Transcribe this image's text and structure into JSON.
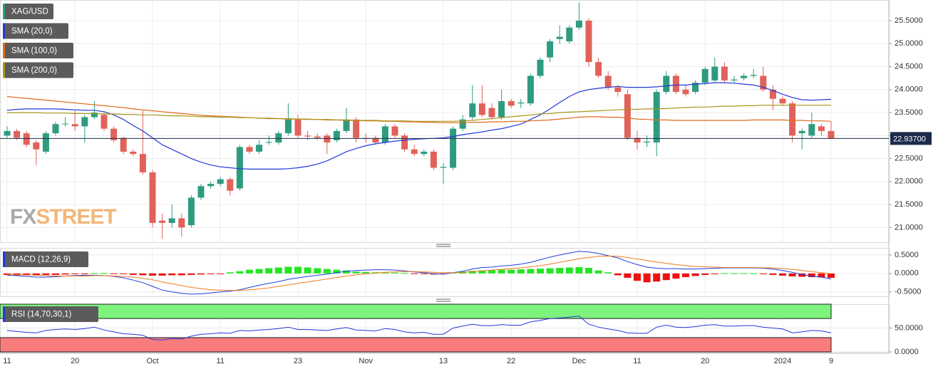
{
  "chart_data": [
    {
      "type": "candlestick",
      "title": "XAG/USD",
      "up_color": "#2e9b80",
      "down_color": "#e0625a",
      "categories": [
        "11",
        null,
        null,
        null,
        null,
        null,
        null,
        "20",
        null,
        null,
        null,
        null,
        null,
        null,
        null,
        "Oct",
        null,
        null,
        null,
        null,
        null,
        null,
        "11",
        null,
        null,
        null,
        null,
        null,
        null,
        null,
        "23",
        null,
        null,
        null,
        null,
        null,
        null,
        "Nov",
        null,
        null,
        null,
        null,
        null,
        null,
        null,
        "13",
        null,
        null,
        null,
        null,
        null,
        null,
        "22",
        null,
        null,
        null,
        null,
        null,
        null,
        "Dec",
        null,
        null,
        null,
        null,
        null,
        "11",
        null,
        null,
        null,
        null,
        null,
        null,
        "20",
        null,
        null,
        null,
        null,
        null,
        null,
        null,
        "2024",
        null,
        null,
        null,
        null,
        "9"
      ],
      "open": [
        23.0,
        23.1,
        23.05,
        22.85,
        22.65,
        23.05,
        23.25,
        23.25,
        23.2,
        23.4,
        23.45,
        23.15,
        22.95,
        22.65,
        22.6,
        22.2,
        21.15,
        21.1,
        21.2,
        21.05,
        21.65,
        21.9,
        21.95,
        22.05,
        21.85,
        22.75,
        22.65,
        22.85,
        22.85,
        23.05,
        23.35,
        23.0,
        22.98,
        23.0,
        22.9,
        23.1,
        23.35,
        22.95,
        22.95,
        22.85,
        23.2,
        23.0,
        22.7,
        22.6,
        22.65,
        22.3,
        22.3,
        23.15,
        23.4,
        23.7,
        23.6,
        23.4,
        23.75,
        23.7,
        23.7,
        24.3,
        24.7,
        25.1,
        25.05,
        25.35,
        25.5,
        24.6,
        24.3,
        24.05,
        23.9,
        22.95,
        22.85,
        22.85,
        23.95,
        24.3,
        24.0,
        23.95,
        24.15,
        24.2,
        24.5,
        24.2,
        24.25,
        24.3,
        24.3,
        24.0,
        23.8,
        23.7,
        23.05,
        23.0,
        23.2,
        23.1
      ],
      "high": [
        23.2,
        23.15,
        23.1,
        22.9,
        23.1,
        23.3,
        23.4,
        23.55,
        23.45,
        23.75,
        23.5,
        23.2,
        22.98,
        22.7,
        23.55,
        22.25,
        21.3,
        21.5,
        21.3,
        21.7,
        21.95,
        22.0,
        22.1,
        22.1,
        22.8,
        22.8,
        22.9,
        23.0,
        23.1,
        23.7,
        23.45,
        23.1,
        23.05,
        23.05,
        23.15,
        23.6,
        23.4,
        23.05,
        23.0,
        23.25,
        23.25,
        23.05,
        22.8,
        22.7,
        22.7,
        22.4,
        23.2,
        23.45,
        24.1,
        24.1,
        23.7,
        24.0,
        23.8,
        23.8,
        24.35,
        24.7,
        25.1,
        25.4,
        25.4,
        25.9,
        25.55,
        24.7,
        24.4,
        24.1,
        24.0,
        23.1,
        23.0,
        24.0,
        24.4,
        24.35,
        24.1,
        24.2,
        24.5,
        24.7,
        24.6,
        24.3,
        24.35,
        24.45,
        24.5,
        24.1,
        23.85,
        23.75,
        23.15,
        23.5,
        23.25,
        23.3
      ],
      "low": [
        22.95,
        22.9,
        22.75,
        22.35,
        22.6,
        23.0,
        23.2,
        23.1,
        22.85,
        23.35,
        23.1,
        22.85,
        22.6,
        22.55,
        22.15,
        21.0,
        20.75,
        21.0,
        20.8,
        21.0,
        21.6,
        21.85,
        21.9,
        21.7,
        21.8,
        22.6,
        22.6,
        22.8,
        22.8,
        23.0,
        22.95,
        22.9,
        22.9,
        22.6,
        22.85,
        23.05,
        22.85,
        22.85,
        22.8,
        22.8,
        22.95,
        22.65,
        22.55,
        22.55,
        22.25,
        21.95,
        22.25,
        23.1,
        23.35,
        23.4,
        23.35,
        23.35,
        23.6,
        23.6,
        23.65,
        24.25,
        24.6,
        25.0,
        25.0,
        25.3,
        24.5,
        24.25,
        24.0,
        23.85,
        22.9,
        22.7,
        22.75,
        22.55,
        23.9,
        23.9,
        23.85,
        23.9,
        24.1,
        24.15,
        24.15,
        24.15,
        24.2,
        24.25,
        23.95,
        23.55,
        23.65,
        22.85,
        22.7,
        22.95,
        23.0,
        22.92
      ],
      "close": [
        23.1,
        22.95,
        22.8,
        22.7,
        23.05,
        23.25,
        23.26,
        23.2,
        23.4,
        23.5,
        23.15,
        22.9,
        22.65,
        22.6,
        22.2,
        21.1,
        21.1,
        21.2,
        21.0,
        21.65,
        21.9,
        21.95,
        22.05,
        21.8,
        22.75,
        22.65,
        22.8,
        22.86,
        23.05,
        23.35,
        23.0,
        22.98,
        22.95,
        22.85,
        23.1,
        23.35,
        22.95,
        22.93,
        22.85,
        23.2,
        23.0,
        22.7,
        22.6,
        22.65,
        22.3,
        22.32,
        23.15,
        23.35,
        23.7,
        23.45,
        23.4,
        23.75,
        23.65,
        23.72,
        24.3,
        24.65,
        25.05,
        25.15,
        25.35,
        25.5,
        24.6,
        24.3,
        24.05,
        23.95,
        22.95,
        22.85,
        22.87,
        23.95,
        24.3,
        23.95,
        23.9,
        24.15,
        24.45,
        24.5,
        24.2,
        24.22,
        24.3,
        24.32,
        24.0,
        23.8,
        23.7,
        23.0,
        23.1,
        23.25,
        23.1,
        22.94
      ],
      "series": [
        {
          "name": "SMA (20,0)",
          "color": "#2438d8",
          "values": [
            23.55,
            23.57,
            23.58,
            23.58,
            23.58,
            23.58,
            23.57,
            23.56,
            23.55,
            23.55,
            23.52,
            23.45,
            23.35,
            23.22,
            23.1,
            22.95,
            22.8,
            22.7,
            22.6,
            22.5,
            22.42,
            22.36,
            22.32,
            22.3,
            22.28,
            22.27,
            22.27,
            22.27,
            22.27,
            22.28,
            22.3,
            22.33,
            22.38,
            22.45,
            22.55,
            22.65,
            22.72,
            22.78,
            22.82,
            22.85,
            22.88,
            22.9,
            22.92,
            22.93,
            22.94,
            22.95,
            22.98,
            23.02,
            23.05,
            23.08,
            23.12,
            23.15,
            23.2,
            23.25,
            23.35,
            23.45,
            23.58,
            23.72,
            23.85,
            23.95,
            24.0,
            24.03,
            24.05,
            24.07,
            24.05,
            24.05,
            24.05,
            24.06,
            24.08,
            24.1,
            24.1,
            24.12,
            24.13,
            24.15,
            24.15,
            24.14,
            24.12,
            24.1,
            24.05,
            23.98,
            23.9,
            23.83,
            23.78,
            23.77,
            23.78,
            23.79
          ]
        },
        {
          "name": "SMA (100,0)",
          "color": "#e06a1a",
          "values": [
            23.85,
            23.83,
            23.81,
            23.79,
            23.77,
            23.75,
            23.73,
            23.71,
            23.69,
            23.67,
            23.65,
            23.63,
            23.61,
            23.58,
            23.56,
            23.54,
            23.52,
            23.5,
            23.48,
            23.46,
            23.44,
            23.43,
            23.42,
            23.41,
            23.4,
            23.39,
            23.38,
            23.37,
            23.37,
            23.36,
            23.36,
            23.35,
            23.35,
            23.34,
            23.34,
            23.33,
            23.33,
            23.32,
            23.32,
            23.31,
            23.31,
            23.3,
            23.3,
            23.29,
            23.29,
            23.28,
            23.28,
            23.28,
            23.29,
            23.29,
            23.3,
            23.3,
            23.31,
            23.31,
            23.32,
            23.33,
            23.34,
            23.36,
            23.38,
            23.4,
            23.41,
            23.41,
            23.4,
            23.4,
            23.38,
            23.36,
            23.35,
            23.34,
            23.34,
            23.33,
            23.33,
            23.33,
            23.33,
            23.33,
            23.33,
            23.33,
            23.33,
            23.34,
            23.34,
            23.34,
            23.34,
            23.33,
            23.33,
            23.32,
            23.32,
            23.31
          ]
        },
        {
          "name": "SMA (200,0)",
          "color": "#a8961a",
          "values": [
            23.5,
            23.5,
            23.5,
            23.5,
            23.49,
            23.49,
            23.49,
            23.48,
            23.48,
            23.48,
            23.47,
            23.47,
            23.46,
            23.46,
            23.45,
            23.45,
            23.44,
            23.43,
            23.43,
            23.42,
            23.41,
            23.41,
            23.4,
            23.4,
            23.39,
            23.39,
            23.38,
            23.38,
            23.37,
            23.37,
            23.36,
            23.36,
            23.35,
            23.35,
            23.34,
            23.34,
            23.33,
            23.33,
            23.33,
            23.32,
            23.32,
            23.32,
            23.31,
            23.31,
            23.31,
            23.31,
            23.31,
            23.32,
            23.33,
            23.35,
            23.37,
            23.39,
            23.41,
            23.43,
            23.45,
            23.47,
            23.48,
            23.5,
            23.51,
            23.52,
            23.53,
            23.54,
            23.55,
            23.56,
            23.57,
            23.57,
            23.58,
            23.58,
            23.59,
            23.6,
            23.61,
            23.62,
            23.62,
            23.63,
            23.64,
            23.64,
            23.65,
            23.65,
            23.66,
            23.66,
            23.66,
            23.66,
            23.66,
            23.66,
            23.66,
            23.66
          ]
        }
      ],
      "ylim": [
        20.68,
        25.95
      ],
      "yticks": [
        {
          "value": 25.5,
          "label": "25.5000"
        },
        {
          "value": 25,
          "label": "25.0000"
        },
        {
          "value": 24.5,
          "label": "24.5000"
        },
        {
          "value": 24,
          "label": "24.0000"
        },
        {
          "value": 23.5,
          "label": "23.5000"
        },
        {
          "value": 23,
          "label": "23.0000"
        },
        {
          "value": 22.5,
          "label": "22.5000"
        },
        {
          "value": 22,
          "label": "22.0000"
        },
        {
          "value": 21.5,
          "label": "21.5000"
        },
        {
          "value": 21,
          "label": "21.0000"
        }
      ],
      "last_price": {
        "value": 22.937,
        "label": "22.93700"
      },
      "last_price_color": "#1c2a4a",
      "watermark": [
        "FX",
        "STREET"
      ],
      "grid": true
    },
    {
      "type": "macd",
      "title": "MACD (12,26,9)",
      "series": [
        {
          "color": "#1f3fe0",
          "values": [
            -0.05,
            -0.06,
            -0.08,
            -0.1,
            -0.1,
            -0.09,
            -0.07,
            -0.06,
            -0.05,
            -0.05,
            -0.06,
            -0.08,
            -0.12,
            -0.18,
            -0.25,
            -0.35,
            -0.45,
            -0.5,
            -0.54,
            -0.56,
            -0.55,
            -0.53,
            -0.5,
            -0.48,
            -0.44,
            -0.38,
            -0.32,
            -0.27,
            -0.22,
            -0.16,
            -0.12,
            -0.08,
            -0.05,
            -0.02,
            0.02,
            0.06,
            0.08,
            0.09,
            0.1,
            0.1,
            0.09,
            0.07,
            0.04,
            0.02,
            -0.01,
            -0.02,
            0.02,
            0.06,
            0.12,
            0.16,
            0.17,
            0.2,
            0.22,
            0.25,
            0.3,
            0.37,
            0.44,
            0.5,
            0.55,
            0.6,
            0.58,
            0.54,
            0.48,
            0.42,
            0.32,
            0.24,
            0.17,
            0.14,
            0.13,
            0.13,
            0.12,
            0.12,
            0.13,
            0.14,
            0.15,
            0.15,
            0.15,
            0.15,
            0.14,
            0.12,
            0.08,
            0.03,
            -0.03,
            -0.07,
            -0.1,
            -0.15
          ]
        },
        {
          "color": "#f07a1a",
          "values": [
            -0.02,
            -0.03,
            -0.04,
            -0.05,
            -0.06,
            -0.07,
            -0.07,
            -0.07,
            -0.07,
            -0.06,
            -0.06,
            -0.07,
            -0.08,
            -0.1,
            -0.13,
            -0.17,
            -0.23,
            -0.28,
            -0.33,
            -0.38,
            -0.41,
            -0.44,
            -0.45,
            -0.46,
            -0.46,
            -0.44,
            -0.42,
            -0.39,
            -0.35,
            -0.31,
            -0.27,
            -0.23,
            -0.19,
            -0.15,
            -0.11,
            -0.07,
            -0.04,
            -0.01,
            0.01,
            0.03,
            0.04,
            0.05,
            0.05,
            0.04,
            0.03,
            0.02,
            0.02,
            0.03,
            0.05,
            0.07,
            0.09,
            0.11,
            0.13,
            0.15,
            0.18,
            0.21,
            0.25,
            0.3,
            0.35,
            0.4,
            0.43,
            0.46,
            0.47,
            0.46,
            0.43,
            0.39,
            0.35,
            0.31,
            0.27,
            0.24,
            0.21,
            0.19,
            0.18,
            0.17,
            0.16,
            0.16,
            0.16,
            0.16,
            0.15,
            0.15,
            0.13,
            0.11,
            0.08,
            0.05,
            0.02,
            -0.01
          ]
        }
      ],
      "histogram": {
        "up_color": "#22e622",
        "down_color": "#ee1111",
        "values": [
          -0.04,
          -0.05,
          -0.05,
          -0.05,
          -0.04,
          -0.04,
          -0.03,
          -0.02,
          -0.01,
          0.01,
          0.01,
          -0.01,
          -0.02,
          -0.04,
          -0.05,
          -0.06,
          -0.06,
          -0.05,
          -0.05,
          -0.04,
          -0.03,
          -0.02,
          -0.01,
          0.03,
          0.06,
          0.1,
          0.12,
          0.14,
          0.16,
          0.18,
          0.18,
          0.16,
          0.14,
          0.12,
          0.1,
          0.08,
          0.05,
          0.04,
          0.03,
          0.02,
          0.02,
          0.01,
          -0.01,
          -0.02,
          -0.03,
          -0.02,
          0.02,
          0.05,
          0.07,
          0.08,
          0.09,
          0.1,
          0.1,
          0.11,
          0.12,
          0.13,
          0.14,
          0.15,
          0.16,
          0.17,
          0.15,
          0.08,
          0.03,
          -0.05,
          -0.12,
          -0.2,
          -0.24,
          -0.22,
          -0.18,
          -0.14,
          -0.1,
          -0.07,
          -0.04,
          -0.02,
          0.005,
          0.005,
          0.005,
          0.005,
          -0.02,
          -0.04,
          -0.06,
          -0.08,
          -0.09,
          -0.1,
          -0.11,
          -0.12
        ]
      },
      "ylim": [
        -0.62,
        0.69
      ],
      "yticks": [
        {
          "value": 0.5,
          "label": "0.5000"
        },
        {
          "value": 0,
          "label": "0.0000"
        },
        {
          "value": -0.5,
          "label": "-0.5000"
        }
      ]
    },
    {
      "type": "rsi",
      "title": "RSI (14,70,30,1)",
      "color": "#2438d8",
      "values": [
        45,
        43,
        41,
        40,
        45,
        47,
        48,
        47,
        49,
        52,
        46,
        42,
        38,
        37,
        35,
        26,
        25,
        28,
        27,
        33,
        37,
        38,
        40,
        39,
        45,
        44,
        46,
        47,
        49,
        52,
        47,
        47,
        46,
        45,
        48,
        51,
        46,
        45,
        44,
        49,
        47,
        42,
        40,
        41,
        37,
        37,
        50,
        54,
        58,
        55,
        55,
        57,
        56,
        56,
        63,
        66,
        70,
        71,
        73,
        75,
        58,
        52,
        48,
        45,
        40,
        39,
        39,
        52,
        56,
        52,
        51,
        53,
        56,
        57,
        54,
        54,
        55,
        55,
        52,
        50,
        48,
        40,
        42,
        45,
        44,
        40
      ],
      "overbought": 70,
      "oversold": 30,
      "overbought_color": "#7df27d",
      "oversold_color": "#f87c7c",
      "ylim": [
        0,
        100
      ],
      "yticks": [
        {
          "value": 50,
          "label": "50.0000"
        },
        {
          "value": 0,
          "label": "0.0000"
        }
      ]
    }
  ]
}
